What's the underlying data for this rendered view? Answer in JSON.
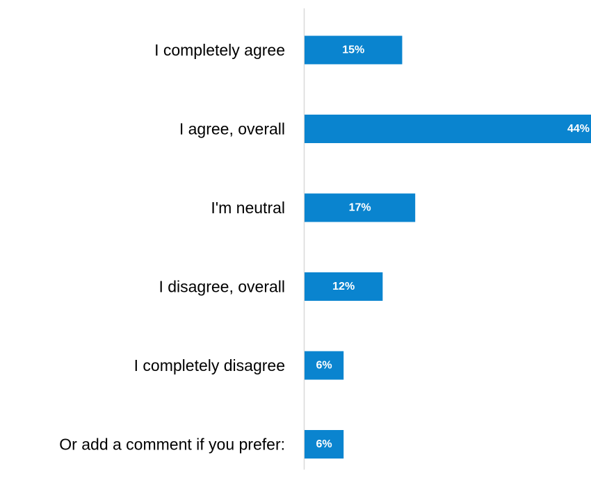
{
  "chart_data": {
    "type": "bar",
    "orientation": "horizontal",
    "categories": [
      "I completely agree",
      "I agree, overall",
      "I'm neutral",
      "I disagree, overall",
      "I completely disagree",
      "Or add a comment if you prefer:"
    ],
    "values": [
      15,
      44,
      17,
      12,
      6,
      6
    ],
    "value_labels": [
      "15%",
      "44%",
      "17%",
      "12%",
      "6%",
      "6%"
    ],
    "title": "",
    "xlabel": "",
    "ylabel": "",
    "xlim": [
      0,
      44
    ],
    "grid": false,
    "legend": "none",
    "colors": {
      "bar": "#0a84cf",
      "axis": "#d9d9d9",
      "label": "#000000",
      "value_label": "#ffffff"
    }
  }
}
